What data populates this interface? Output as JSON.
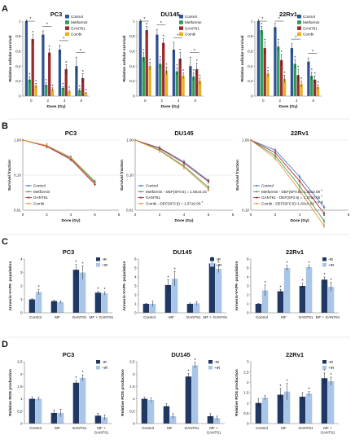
{
  "panels": [
    {
      "label": "A",
      "top": "5",
      "bottom": "140"
    },
    {
      "label": "B",
      "top": "148",
      "bottom": "280"
    },
    {
      "label": "C",
      "top": "292",
      "bottom": "414"
    },
    {
      "label": "D",
      "top": "417",
      "bottom": "548"
    }
  ],
  "colors": {
    "control": "#2f5597",
    "metformin": "#2e9b57",
    "gant61": "#9c2a2a",
    "combi": "#e8b11a",
    "minus_ir": "#1f3864",
    "plus_ir": "#a9c5e8",
    "curve_control": "#4a7cc7",
    "curve_metformin": "#4a9e4f",
    "curve_gant61": "#b3342e",
    "curve_combi": "#e59a3c"
  },
  "chart_data": [
    {
      "panel": "A",
      "type": "bar",
      "title": "PC3",
      "xlabel": "Dose (Gy)",
      "ylabel": "Relative cellular survival",
      "ylim": [
        0,
        1
      ],
      "yticks": [
        "0",
        "0,2",
        "0,4",
        "0,6",
        "0,8",
        "1"
      ],
      "categories": [
        "0",
        "2",
        "4",
        "6"
      ],
      "series": [
        {
          "name": "Control",
          "values": [
            1.0,
            0.82,
            0.62,
            0.4
          ],
          "err": [
            0.02,
            0.05,
            0.06,
            0.12
          ]
        },
        {
          "name": "Metformin",
          "values": [
            0.22,
            0.15,
            0.11,
            0.08
          ],
          "err": [
            0.04,
            0.03,
            0.02,
            0.02
          ]
        },
        {
          "name": "GANT61",
          "values": [
            0.76,
            0.58,
            0.36,
            0.24
          ],
          "err": [
            0.06,
            0.05,
            0.06,
            0.06
          ]
        },
        {
          "name": "Combi",
          "values": [
            0.14,
            0.09,
            0.06,
            0.04
          ],
          "err": [
            0.03,
            0.02,
            0.02,
            0.01
          ]
        }
      ],
      "legend_loc": "top-right"
    },
    {
      "panel": "A",
      "type": "bar",
      "title": "DU145",
      "xlabel": "Dose (Gy)",
      "ylabel": "Relative cellular survival",
      "ylim": [
        0,
        1
      ],
      "yticks": [
        "0",
        "0,2",
        "0,4",
        "0,6",
        "0,8",
        "1"
      ],
      "categories": [
        "0",
        "2",
        "4",
        "6"
      ],
      "series": [
        {
          "name": "Control",
          "values": [
            1.0,
            0.82,
            0.62,
            0.4
          ],
          "err": [
            0.02,
            0.07,
            0.1,
            0.12
          ]
        },
        {
          "name": "Metformin",
          "values": [
            0.52,
            0.43,
            0.33,
            0.26
          ],
          "err": [
            0.06,
            0.06,
            0.05,
            0.05
          ]
        },
        {
          "name": "GANT61",
          "values": [
            0.88,
            0.71,
            0.5,
            0.36
          ],
          "err": [
            0.05,
            0.06,
            0.08,
            0.08
          ]
        },
        {
          "name": "Combi",
          "values": [
            0.4,
            0.34,
            0.27,
            0.2
          ],
          "err": [
            0.05,
            0.05,
            0.04,
            0.04
          ]
        }
      ],
      "legend_loc": "top-right"
    },
    {
      "panel": "A",
      "type": "bar",
      "title": "22Rv1",
      "xlabel": "Dose (Gy)",
      "ylabel": "Relative cellular survival",
      "ylim": [
        0,
        1
      ],
      "yticks": [
        "0",
        "0,2",
        "0,4",
        "0,6",
        "0,8",
        "1"
      ],
      "categories": [
        "0",
        "2",
        "4",
        "6"
      ],
      "series": [
        {
          "name": "Control",
          "values": [
            1.0,
            0.92,
            0.64,
            0.46
          ],
          "err": [
            0.02,
            0.05,
            0.06,
            0.05
          ]
        },
        {
          "name": "Metformin",
          "values": [
            0.88,
            0.66,
            0.43,
            0.27
          ],
          "err": [
            0.05,
            0.06,
            0.06,
            0.05
          ]
        },
        {
          "name": "GANT61",
          "values": [
            0.64,
            0.48,
            0.28,
            0.22
          ],
          "err": [
            0.08,
            0.08,
            0.08,
            0.05
          ]
        },
        {
          "name": "Combi",
          "values": [
            0.3,
            0.23,
            0.16,
            0.12
          ],
          "err": [
            0.04,
            0.05,
            0.04,
            0.03
          ]
        }
      ],
      "legend_loc": "top-right"
    },
    {
      "panel": "B",
      "type": "line",
      "title": "PC3",
      "xlabel": "Dose (Gy)",
      "ylabel": "Survival fraction",
      "xlim": [
        0,
        8
      ],
      "xticks": [
        "0",
        "2",
        "4",
        "6",
        "8"
      ],
      "yticks": [
        "1,00",
        "0,10",
        "0,01"
      ],
      "ylog": true,
      "x": [
        0,
        2,
        4,
        6
      ],
      "series": [
        {
          "name": "Control",
          "values": [
            1.0,
            0.68,
            0.3,
            0.06
          ]
        },
        {
          "name": "Metformin",
          "values": [
            1.0,
            0.7,
            0.32,
            0.065
          ]
        },
        {
          "name": "GANT61",
          "values": [
            1.0,
            0.66,
            0.28,
            0.055
          ]
        },
        {
          "name": "Combi",
          "values": [
            1.0,
            0.7,
            0.31,
            0.06
          ]
        }
      ],
      "legend": [
        "Control",
        "Metformin",
        "GANT61",
        "Combi"
      ],
      "legend_loc": "bottom-left"
    },
    {
      "panel": "B",
      "type": "line",
      "title": "DU145",
      "xlabel": "Dose (Gy)",
      "ylabel": "Survival fraction",
      "xlim": [
        0,
        8
      ],
      "xticks": [
        "0",
        "2",
        "4",
        "6",
        "8"
      ],
      "yticks": [
        "1,00",
        "0,10",
        "0,01"
      ],
      "ylog": true,
      "x": [
        0,
        2,
        4,
        6
      ],
      "series": [
        {
          "name": "Control",
          "values": [
            1.0,
            0.6,
            0.24,
            0.07
          ]
        },
        {
          "name": "Metformin",
          "values": [
            1.0,
            0.52,
            0.18,
            0.045
          ]
        },
        {
          "name": "GANT61",
          "values": [
            1.0,
            0.58,
            0.22,
            0.065
          ]
        },
        {
          "name": "Combi",
          "values": [
            1.0,
            0.5,
            0.17,
            0.04
          ]
        }
      ],
      "legend": [
        "Control",
        "Metformin - DEF(SF0.5) = 1.60±0.15",
        "GANT61",
        "Combi - DEF(SF0.5) = 1.57±0.06"
      ],
      "legend_marks": [
        "",
        "*",
        "",
        "*"
      ],
      "legend_loc": "bottom-left"
    },
    {
      "panel": "B",
      "type": "line",
      "title": "22Rv1",
      "xlabel": "Dose (Gy)",
      "ylabel": "Survival fraction",
      "xlim": [
        0,
        8
      ],
      "xticks": [
        "0",
        "2",
        "4",
        "6",
        "8"
      ],
      "yticks": [
        "1,00",
        "0,10"
      ],
      "ylog": true,
      "x": [
        0,
        2,
        4,
        6
      ],
      "series": [
        {
          "name": "Control",
          "values": [
            1.0,
            0.72,
            0.3,
            0.11
          ]
        },
        {
          "name": "Metformin",
          "values": [
            1.0,
            0.6,
            0.22,
            0.07
          ]
        },
        {
          "name": "GANT61",
          "values": [
            1.0,
            0.66,
            0.26,
            0.09
          ]
        },
        {
          "name": "Combi",
          "values": [
            1.0,
            0.55,
            0.19,
            0.06
          ]
        }
      ],
      "legend": [
        "Control",
        "Metformin - DEF(SF0.5)=1.36±0.08",
        "GANT61 - DEF(SF0.5) = 1.37±0.08",
        "Combi - DEF(SF0.5)=1.63±0.03"
      ],
      "legend_marks": [
        "",
        "*",
        "*",
        "* # $"
      ],
      "legend_loc": "bottom-left"
    },
    {
      "panel": "C",
      "type": "bar",
      "title": "PC3",
      "ylabel": "Annexin-V+/PI- population",
      "ylim": [
        0,
        4
      ],
      "yticks": [
        "0",
        "1",
        "2",
        "3",
        "4"
      ],
      "categories": [
        "Control",
        "MF",
        "GANT61",
        "MF + GANT61"
      ],
      "series": [
        {
          "name": "-IR",
          "values": [
            1.0,
            0.87,
            3.2,
            1.5
          ],
          "err": [
            0.05,
            0.08,
            0.4,
            0.1
          ]
        },
        {
          "name": "+IR",
          "values": [
            1.55,
            0.8,
            3.0,
            1.45
          ],
          "err": [
            0.2,
            0.1,
            0.5,
            0.12
          ]
        }
      ],
      "legend_loc": "top-right"
    },
    {
      "panel": "C",
      "type": "bar",
      "title": "DU145",
      "ylabel": "Annexin-V+/PI- population",
      "ylim": [
        0,
        6
      ],
      "yticks": [
        "0",
        "1",
        "2",
        "3",
        "4",
        "5",
        "6"
      ],
      "categories": [
        "Control",
        "MF",
        "GANT61",
        "MF + GANT61"
      ],
      "series": [
        {
          "name": "-IR",
          "values": [
            1.0,
            3.1,
            1.0,
            5.5
          ],
          "err": [
            0.05,
            0.6,
            0.1,
            0.3
          ]
        },
        {
          "name": "+IR",
          "values": [
            1.0,
            3.8,
            1.05,
            4.9
          ],
          "err": [
            0.3,
            0.8,
            0.2,
            0.4
          ]
        }
      ],
      "legend_loc": "top-right"
    },
    {
      "panel": "C",
      "type": "bar",
      "title": "22Rv1",
      "ylabel": "Annexin-V+/PI- population",
      "ylim": [
        0,
        6
      ],
      "yticks": [
        "0",
        "1",
        "2",
        "3",
        "4",
        "5",
        "6"
      ],
      "categories": [
        "Control",
        "MF",
        "GANT61",
        "MF + GANT61"
      ],
      "series": [
        {
          "name": "-IR",
          "values": [
            1.0,
            2.4,
            3.0,
            3.7
          ],
          "err": [
            0.05,
            0.2,
            0.3,
            0.3
          ]
        },
        {
          "name": "+IR",
          "values": [
            2.5,
            5.0,
            5.1,
            2.9
          ],
          "err": [
            0.6,
            0.3,
            0.2,
            0.5
          ]
        }
      ],
      "legend_loc": "top-right"
    },
    {
      "panel": "D",
      "type": "bar",
      "title": "PC3",
      "ylabel": "Relative ROS production",
      "ylim": [
        0,
        2.5
      ],
      "yticks": [
        "0",
        "0,5",
        "1",
        "1,5",
        "2",
        "2,5"
      ],
      "categories": [
        "Control",
        "MF",
        "GANT61",
        "MF +\nGANT61"
      ],
      "series": [
        {
          "name": "-IR",
          "values": [
            1.0,
            0.43,
            1.65,
            0.32
          ],
          "err": [
            0.08,
            0.12,
            0.1,
            0.1
          ]
        },
        {
          "name": "+IR",
          "values": [
            1.0,
            0.43,
            1.85,
            0.25
          ],
          "err": [
            0.06,
            0.15,
            0.12,
            0.1
          ]
        }
      ],
      "legend_loc": "top-right"
    },
    {
      "panel": "D",
      "type": "bar",
      "title": "DU145",
      "ylabel": "Relative ROS production",
      "ylim": [
        0,
        2.5
      ],
      "yticks": [
        "0",
        "0,5",
        "1",
        "1,5",
        "2",
        "2,5"
      ],
      "categories": [
        "Control",
        "MF",
        "GANT61",
        "MF +\nGANT61"
      ],
      "series": [
        {
          "name": "-IR",
          "values": [
            1.0,
            0.7,
            1.9,
            0.3
          ],
          "err": [
            0.06,
            0.1,
            0.12,
            0.1
          ]
        },
        {
          "name": "+IR",
          "values": [
            0.95,
            0.3,
            2.35,
            0.22
          ],
          "err": [
            0.08,
            0.1,
            0.12,
            0.08
          ]
        }
      ],
      "legend_loc": "top-right"
    },
    {
      "panel": "D",
      "type": "bar",
      "title": "22Rv1",
      "ylabel": "Relative ROS production",
      "ylim": [
        0,
        3
      ],
      "yticks": [
        "0",
        "0,5",
        "1",
        "1,5",
        "2",
        "2,5",
        "3"
      ],
      "categories": [
        "Control",
        "MF",
        "GANT61",
        "MF +\nGANT61"
      ],
      "series": [
        {
          "name": "-IR",
          "values": [
            1.0,
            1.4,
            1.3,
            2.2
          ],
          "err": [
            0.2,
            0.3,
            0.2,
            0.25
          ]
        },
        {
          "name": "+IR",
          "values": [
            1.25,
            1.55,
            1.45,
            2.05
          ],
          "err": [
            0.1,
            0.4,
            0.1,
            0.2
          ]
        }
      ],
      "legend_loc": "top-right"
    }
  ]
}
